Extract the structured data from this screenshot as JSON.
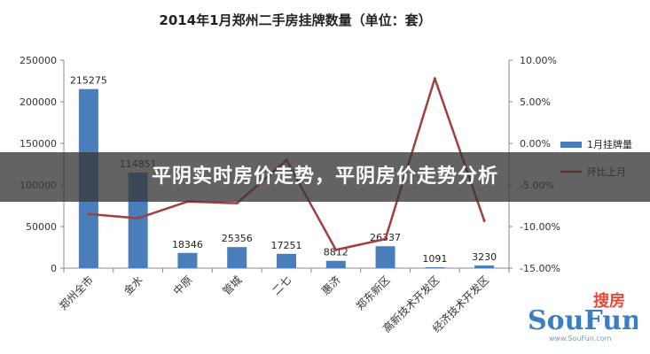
{
  "banner": {
    "text": "平阴实时房价走势，平阴房价走势分析"
  },
  "watermark": {
    "brand_cn": "搜房",
    "brand_en": "SouFun",
    "url": "www.SouFun.com"
  },
  "chart_data": {
    "type": "bar+line",
    "title": "2014年1月郑州二手房挂牌数量（单位：套）",
    "categories": [
      "郑州全市",
      "金水",
      "中原",
      "管城",
      "二七",
      "惠济",
      "郑东新区",
      "高新技术开发区",
      "经济技术开发区"
    ],
    "series": [
      {
        "name": "1月挂牌量",
        "type": "bar",
        "axis": "left",
        "color": "#4a7ebb",
        "values": [
          215275,
          114851,
          18346,
          25356,
          17251,
          8812,
          26337,
          1091,
          3230
        ],
        "labels": [
          "215275",
          "114851",
          "18346",
          "25356",
          "17251",
          "8812",
          "26337",
          "1091",
          "3230"
        ]
      },
      {
        "name": "环比上月",
        "type": "line",
        "axis": "right",
        "color": "#a0403e",
        "values": [
          -8.5,
          -9.0,
          -7.0,
          -7.2,
          -2.0,
          -12.8,
          -11.5,
          7.8,
          -9.3
        ]
      }
    ],
    "left_axis": {
      "min": 0,
      "max": 250000,
      "ticks": [
        "0",
        "50000",
        "100000",
        "150000",
        "200000",
        "250000"
      ]
    },
    "right_axis": {
      "min": -15,
      "max": 10,
      "ticks": [
        "-15.00%",
        "-10.00%",
        "-5.00%",
        "0.00%",
        "5.00%",
        "10.00%"
      ]
    },
    "legend_position": "right",
    "grid": false
  }
}
